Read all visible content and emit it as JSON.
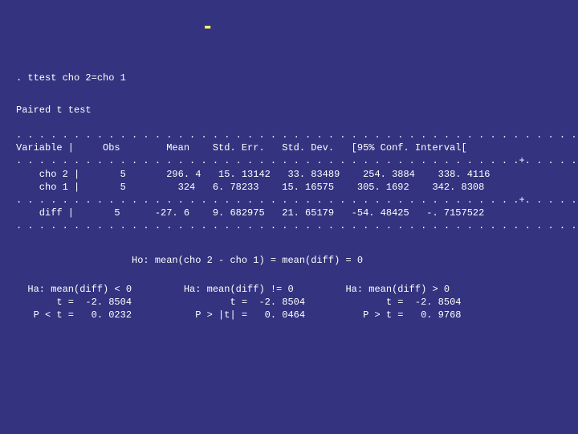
{
  "title": "\u0003\u0003\u0003\u0014\u0014\u0014\u0003-\u0003\u0003\u0003\u0003",
  "command": ". ttest cho 2=cho 1",
  "test_label": "Paired t test",
  "table": ". . . . . . . . . . . . . . . . . . . . . . . . . . . . . . . . . . . . . . . . . . . . . . . . . .\nVariable |     Obs        Mean    Std. Err.   Std. Dev.   [95% Conf. Interval[\n. . . . . . . . . . . . . . . . . . . . . . . . . . . . . . . . . . . . . . . . . . . .+. . . . . . .\n    cho 2 |       5       296. 4   15. 13142   33. 83489    254. 3884    338. 4116\n    cho 1 |       5         324   6. 78233    15. 16575    305. 1692    342. 8308\n. . . . . . . . . . . . . . . . . . . . . . . . . . . . . . . . . . . . . . . . . . . .+. . . . . . .\n    diff |       5      -27. 6    9. 682975   21. 65179   -54. 48425   -. 7157522\n. . . . . . . . . . . . . . . . . . . . . . . . . . . . . . . . . . . . . . . . . . . . . . . . . .",
  "null_hypothesis": "                    Ho: mean(cho 2 - cho 1) = mean(diff) = 0",
  "alt_block": "  Ha: mean(diff) < 0         Ha: mean(diff) != 0         Ha: mean(diff) > 0\n       t =  -2. 8504                 t =  -2. 8504              t =  -2. 8504\n   P < t =   0. 0232           P > |t| =   0. 0464          P > t =   0. 9768"
}
